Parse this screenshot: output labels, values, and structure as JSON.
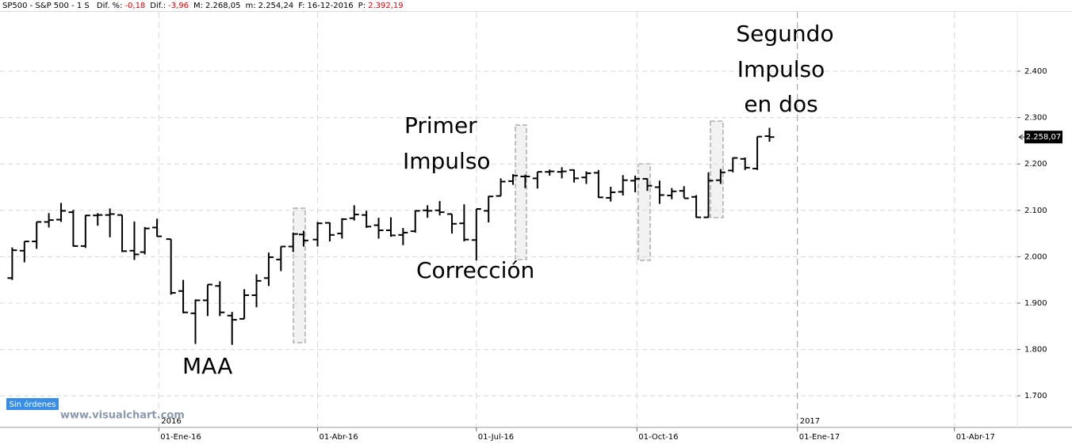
{
  "header": {
    "symbol": "SP500 - S&P 500 - 1 S",
    "fields": [
      {
        "label": "Dif. %:",
        "value": "-0,18",
        "color": "#e00000"
      },
      {
        "label": "Dif.:",
        "value": "-3,96",
        "color": "#e00000"
      },
      {
        "label": "M:",
        "value": "2.268,05",
        "color": "#000000"
      },
      {
        "label": "m:",
        "value": "2.254,24",
        "color": "#000000"
      },
      {
        "label": "F:",
        "value": "16-12-2016",
        "color": "#000000"
      },
      {
        "label": "P:",
        "value": "2.392,19",
        "color": "#e00000"
      }
    ]
  },
  "chart_data": {
    "type": "ohlc",
    "color": "#000000",
    "x": [
      "2015-10-09",
      "2015-10-16",
      "2015-10-23",
      "2015-10-30",
      "2015-11-06",
      "2015-11-13",
      "2015-11-20",
      "2015-11-27",
      "2015-12-04",
      "2015-12-11",
      "2015-12-18",
      "2015-12-24",
      "2015-12-31",
      "2016-01-08",
      "2016-01-15",
      "2016-01-22",
      "2016-01-29",
      "2016-02-05",
      "2016-02-12",
      "2016-02-19",
      "2016-02-26",
      "2016-03-04",
      "2016-03-11",
      "2016-03-18",
      "2016-03-24",
      "2016-04-01",
      "2016-04-08",
      "2016-04-15",
      "2016-04-22",
      "2016-04-29",
      "2016-05-06",
      "2016-05-13",
      "2016-05-20",
      "2016-05-27",
      "2016-06-03",
      "2016-06-10",
      "2016-06-17",
      "2016-06-24",
      "2016-07-01",
      "2016-07-08",
      "2016-07-15",
      "2016-07-22",
      "2016-07-29",
      "2016-08-05",
      "2016-08-12",
      "2016-08-19",
      "2016-08-26",
      "2016-09-02",
      "2016-09-09",
      "2016-09-16",
      "2016-09-23",
      "2016-09-30",
      "2016-10-07",
      "2016-10-14",
      "2016-10-21",
      "2016-10-28",
      "2016-11-04",
      "2016-11-11",
      "2016-11-18",
      "2016-11-25",
      "2016-12-02",
      "2016-12-09",
      "2016-12-16"
    ],
    "open": [
      1954,
      2013,
      2033,
      2075,
      2080,
      2096,
      2023,
      2089,
      2090,
      2090,
      2013,
      2010,
      2063,
      2038,
      1926,
      1878,
      1906,
      1937,
      1873,
      1866,
      1917,
      1954,
      1994,
      2022,
      2048,
      2037,
      2073,
      2050,
      2083,
      2090,
      2068,
      2057,
      2047,
      2055,
      2100,
      2100,
      2092,
      2072,
      2036,
      2099,
      2131,
      2163,
      2173,
      2169,
      2183,
      2183,
      2187,
      2171,
      2181,
      2127,
      2140,
      2164,
      2168,
      2150,
      2132,
      2142,
      2129,
      2085,
      2165,
      2186,
      2211,
      2190,
      2260
    ],
    "high": [
      2020,
      2033,
      2075,
      2094,
      2116,
      2101,
      2090,
      2094,
      2104,
      2090,
      2076,
      2064,
      2082,
      2038,
      1950,
      1908,
      1940,
      1947,
      1881,
      1930,
      1962,
      2009,
      2022,
      2052,
      2056,
      2075,
      2074,
      2083,
      2111,
      2099,
      2084,
      2085,
      2062,
      2100,
      2111,
      2120,
      2092,
      2113,
      2103,
      2131,
      2169,
      2178,
      2177,
      2183,
      2188,
      2193,
      2188,
      2184,
      2187,
      2151,
      2176,
      2175,
      2169,
      2164,
      2148,
      2152,
      2133,
      2182,
      2189,
      2214,
      2214,
      2259,
      2278
    ],
    "low": [
      1950,
      1988,
      2017,
      2063,
      2075,
      2022,
      2019,
      2067,
      2042,
      2010,
      1993,
      2005,
      2043,
      1918,
      1878,
      1812,
      1872,
      1872,
      1810,
      1866,
      1891,
      1937,
      1969,
      2010,
      2022,
      2022,
      2033,
      2039,
      2078,
      2062,
      2039,
      2043,
      2025,
      2052,
      2084,
      2089,
      2050,
      2033,
      1992,
      2074,
      2131,
      2155,
      2148,
      2147,
      2175,
      2169,
      2160,
      2157,
      2127,
      2119,
      2132,
      2139,
      2142,
      2114,
      2124,
      2127,
      2084,
      2084,
      2157,
      2182,
      2187,
      2187,
      2248
    ],
    "close": [
      2014,
      2033,
      2075,
      2079,
      2099,
      2023,
      2089,
      2090,
      2092,
      2012,
      2005,
      2061,
      2044,
      1922,
      1880,
      1906,
      1940,
      1880,
      1864,
      1917,
      1948,
      1999,
      2022,
      2049,
      2035,
      2072,
      2047,
      2081,
      2091,
      2065,
      2057,
      2046,
      2052,
      2099,
      2099,
      2096,
      2071,
      2037,
      2103,
      2130,
      2162,
      2175,
      2173,
      2183,
      2184,
      2184,
      2169,
      2180,
      2128,
      2139,
      2165,
      2168,
      2153,
      2133,
      2141,
      2126,
      2085,
      2164,
      2182,
      2213,
      2192,
      2259,
      2258
    ],
    "xlim": [
      "2015-10-02",
      "2017-05-07"
    ],
    "xticks": [
      {
        "value": "2016-01-01",
        "label": "01-Ene-16"
      },
      {
        "value": "2016-04-01",
        "label": "01-Abr-16"
      },
      {
        "value": "2016-07-01",
        "label": "01-Jul-16"
      },
      {
        "value": "2016-10-01",
        "label": "01-Oct-16"
      },
      {
        "value": "2017-01-01",
        "label": "01-Ene-17"
      },
      {
        "value": "2017-04-01",
        "label": "01-Abr-17"
      }
    ],
    "year_labels": [
      "2016",
      "2017"
    ],
    "ylim": [
      1632,
      2528
    ],
    "yticks": [
      {
        "value": 1700,
        "label": "1.700"
      },
      {
        "value": 1800,
        "label": "1.800"
      },
      {
        "value": 1900,
        "label": "1.900"
      },
      {
        "value": 2000,
        "label": "2.000"
      },
      {
        "value": 2100,
        "label": "2.100"
      },
      {
        "value": 2200,
        "label": "2.200"
      },
      {
        "value": 2300,
        "label": "2.300"
      },
      {
        "value": 2400,
        "label": "2.400"
      }
    ],
    "grid": true,
    "last_price": {
      "value": 2258.07,
      "label": "2.258,07"
    },
    "annotations": [
      [
        "Segundo",
        "Impulso",
        "en dos"
      ],
      [
        "Primer",
        "Impulso"
      ],
      [
        "Corrección"
      ],
      [
        "MAA"
      ]
    ],
    "status": "Sin órdenes",
    "watermark": "www.visualchart.com"
  }
}
